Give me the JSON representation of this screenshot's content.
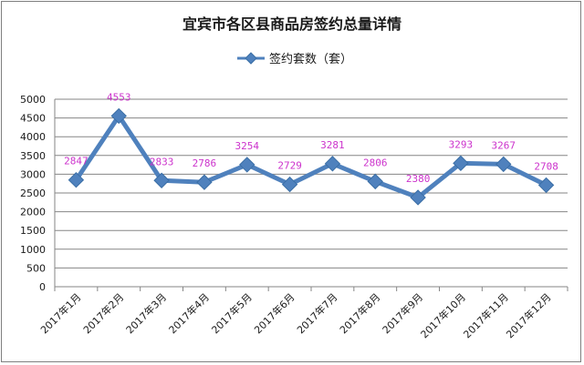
{
  "chart_data": {
    "type": "line",
    "title": "宜宾市各区县商品房签约总量详情",
    "xlabel": "",
    "ylabel": "",
    "categories": [
      "2017年1月",
      "2017年2月",
      "2017年3月",
      "2017年4月",
      "2017年5月",
      "2017年6月",
      "2017年7月",
      "2017年8月",
      "2017年9月",
      "2017年10月",
      "2017年11月",
      "2017年12月"
    ],
    "series": [
      {
        "name": "签约套数（套）",
        "values": [
          2847,
          4553,
          2833,
          2786,
          3254,
          2729,
          3281,
          2806,
          2380,
          3293,
          3267,
          2708
        ],
        "color": "#4f81bd",
        "marker_color": "#4f81bd",
        "label_color": "#cc33cc"
      }
    ],
    "ylim": [
      0,
      5000
    ],
    "yticks": [
      0,
      500,
      1000,
      1500,
      2000,
      2500,
      3000,
      3500,
      4000,
      4500,
      5000
    ],
    "grid": true,
    "legend_position": "top"
  }
}
